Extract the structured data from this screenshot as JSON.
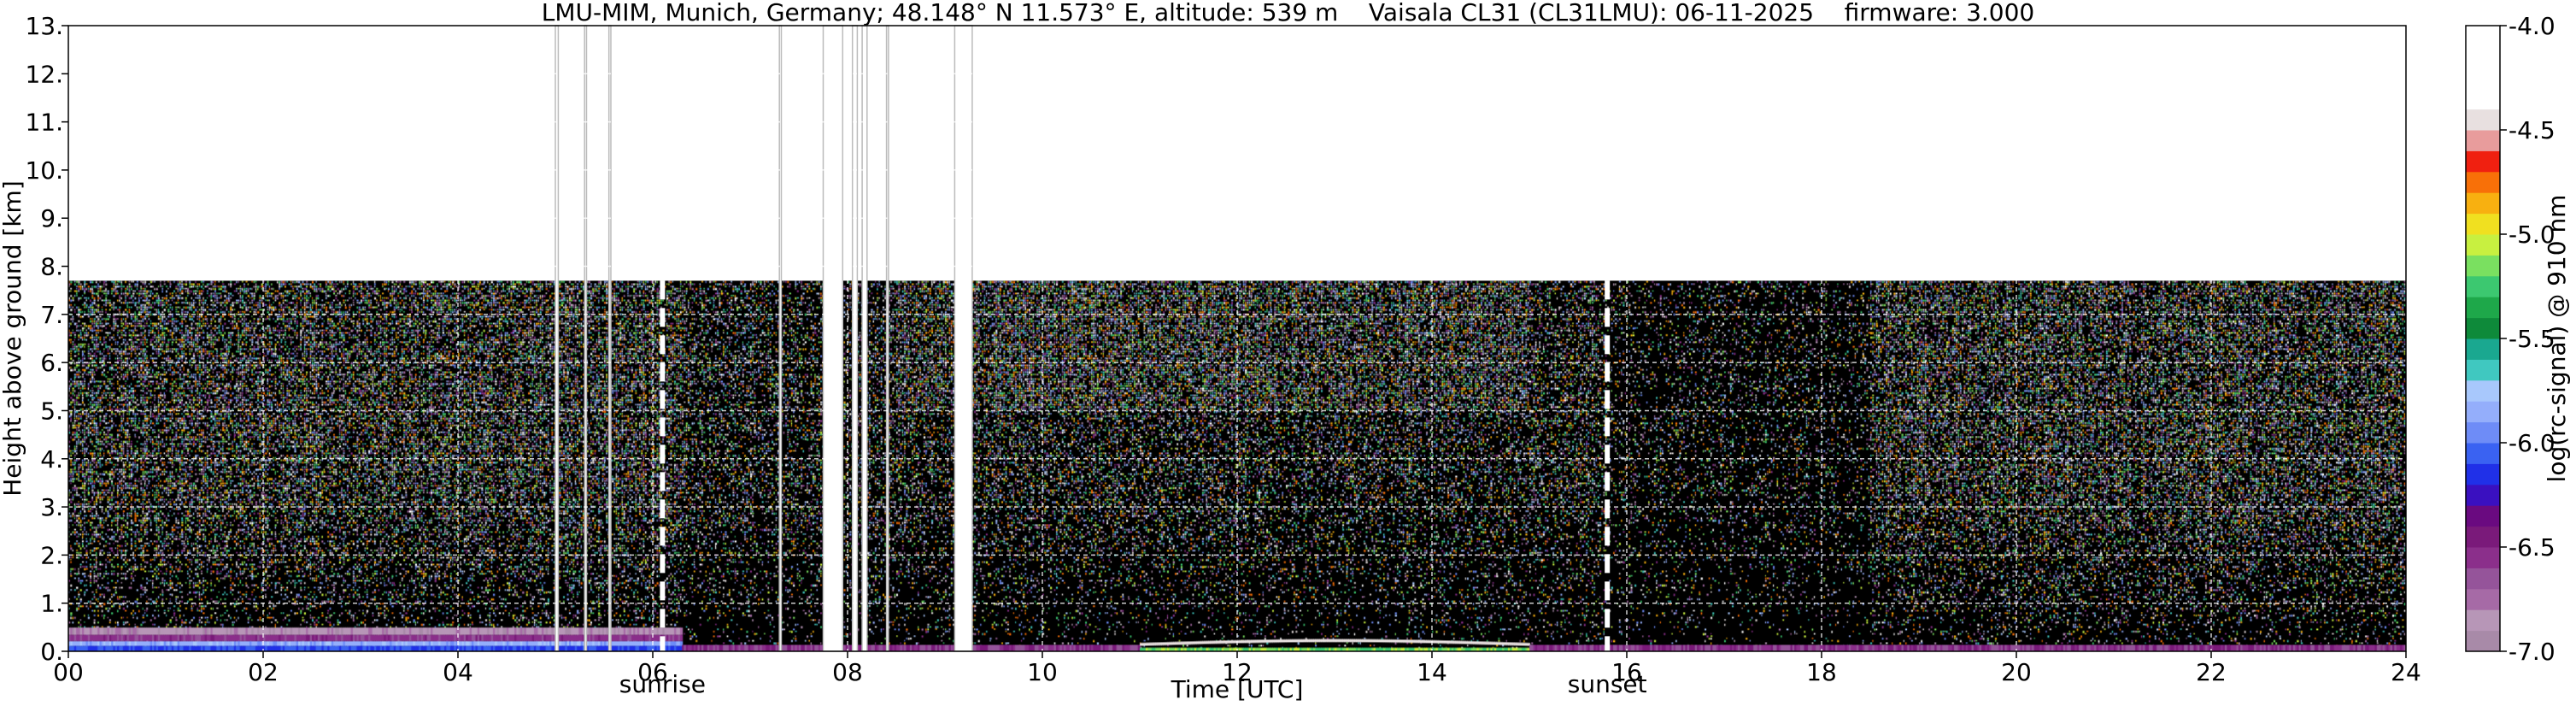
{
  "chart_data": {
    "type": "heatmap",
    "title": "LMU-MIM, Munich, Germany; 48.148° N 11.573° E, altitude: 539 m    Vaisala CL31 (CL31LMU): 06-11-2025    firmware: 3.000",
    "xlabel": "Time [UTC]",
    "ylabel": "Height above ground [km]",
    "xlim": [
      0,
      24
    ],
    "ylim": [
      0,
      13
    ],
    "x_ticks": [
      {
        "value": 0,
        "label": "00"
      },
      {
        "value": 2,
        "label": "02"
      },
      {
        "value": 4,
        "label": "04"
      },
      {
        "value": 6,
        "label": "06"
      },
      {
        "value": 8,
        "label": "08"
      },
      {
        "value": 10,
        "label": "10"
      },
      {
        "value": 12,
        "label": "12"
      },
      {
        "value": 14,
        "label": "14"
      },
      {
        "value": 16,
        "label": "16"
      },
      {
        "value": 18,
        "label": "18"
      },
      {
        "value": 20,
        "label": "20"
      },
      {
        "value": 22,
        "label": "22"
      },
      {
        "value": 24,
        "label": "24"
      }
    ],
    "y_ticks": [
      {
        "value": 0,
        "label": "0."
      },
      {
        "value": 1,
        "label": "1."
      },
      {
        "value": 2,
        "label": "2."
      },
      {
        "value": 3,
        "label": "3."
      },
      {
        "value": 4,
        "label": "4."
      },
      {
        "value": 5,
        "label": "5."
      },
      {
        "value": 6,
        "label": "6."
      },
      {
        "value": 7,
        "label": "7."
      },
      {
        "value": 8,
        "label": "8."
      },
      {
        "value": 9,
        "label": "9."
      },
      {
        "value": 10,
        "label": "10."
      },
      {
        "value": 11,
        "label": "11."
      },
      {
        "value": 12,
        "label": "12."
      },
      {
        "value": 13,
        "label": "13."
      }
    ],
    "grid": true,
    "measurement_top_km": 7.7,
    "annotations": [
      {
        "x": 6.1,
        "label": "sunrise"
      },
      {
        "x": 15.8,
        "label": "sunset"
      }
    ],
    "colorbar": {
      "label": "log(rc-signal) @ 910 nm",
      "range": [
        -7.0,
        -4.0
      ],
      "ticks": [
        {
          "value": -7.0,
          "label": "-7.0"
        },
        {
          "value": -6.5,
          "label": "-6.5"
        },
        {
          "value": -6.0,
          "label": "-6.0"
        },
        {
          "value": -5.5,
          "label": "-5.5"
        },
        {
          "value": -5.0,
          "label": "-5.0"
        },
        {
          "value": -4.5,
          "label": "-4.5"
        },
        {
          "value": -4.0,
          "label": "-4.0"
        }
      ],
      "levels": [
        {
          "from": -7.0,
          "to": -6.9,
          "color": "#a88aa8"
        },
        {
          "from": -6.9,
          "to": -6.8,
          "color": "#b796b7"
        },
        {
          "from": -6.8,
          "to": -6.7,
          "color": "#a66aa6"
        },
        {
          "from": -6.7,
          "to": -6.6,
          "color": "#95549a"
        },
        {
          "from": -6.6,
          "to": -6.5,
          "color": "#8b2f8b"
        },
        {
          "from": -6.5,
          "to": -6.4,
          "color": "#7a1a7a"
        },
        {
          "from": -6.4,
          "to": -6.3,
          "color": "#6a0a80"
        },
        {
          "from": -6.3,
          "to": -6.2,
          "color": "#3a10c0"
        },
        {
          "from": -6.2,
          "to": -6.1,
          "color": "#2030e8"
        },
        {
          "from": -6.1,
          "to": -6.0,
          "color": "#3a62f2"
        },
        {
          "from": -6.0,
          "to": -5.9,
          "color": "#6e8cf7"
        },
        {
          "from": -5.9,
          "to": -5.8,
          "color": "#94aefb"
        },
        {
          "from": -5.8,
          "to": -5.7,
          "color": "#a8c8fc"
        },
        {
          "from": -5.7,
          "to": -5.6,
          "color": "#40c8c0"
        },
        {
          "from": -5.6,
          "to": -5.5,
          "color": "#1aa890"
        },
        {
          "from": -5.5,
          "to": -5.4,
          "color": "#0e8a3a"
        },
        {
          "from": -5.4,
          "to": -5.3,
          "color": "#1ea84a"
        },
        {
          "from": -5.3,
          "to": -5.2,
          "color": "#3cc870"
        },
        {
          "from": -5.2,
          "to": -5.1,
          "color": "#7ae060"
        },
        {
          "from": -5.1,
          "to": -5.0,
          "color": "#c8f040"
        },
        {
          "from": -5.0,
          "to": -4.9,
          "color": "#f0e020"
        },
        {
          "from": -4.9,
          "to": -4.8,
          "color": "#f8b010"
        },
        {
          "from": -4.8,
          "to": -4.7,
          "color": "#f87008"
        },
        {
          "from": -4.7,
          "to": -4.6,
          "color": "#f02010"
        },
        {
          "from": -4.6,
          "to": -4.5,
          "color": "#e89c9c"
        },
        {
          "from": -4.5,
          "to": -4.4,
          "color": "#e8e0e0"
        },
        {
          "from": -4.4,
          "to": -4.0,
          "color": "#ffffff"
        }
      ]
    },
    "missing_data_hours": [
      [
        5.0,
        5.03
      ],
      [
        5.3,
        5.32
      ],
      [
        5.55,
        5.57
      ],
      [
        7.3,
        7.32
      ],
      [
        7.75,
        7.95
      ],
      [
        8.05,
        8.1
      ],
      [
        8.15,
        8.2
      ],
      [
        8.4,
        8.42
      ],
      [
        9.1,
        9.28
      ]
    ]
  }
}
